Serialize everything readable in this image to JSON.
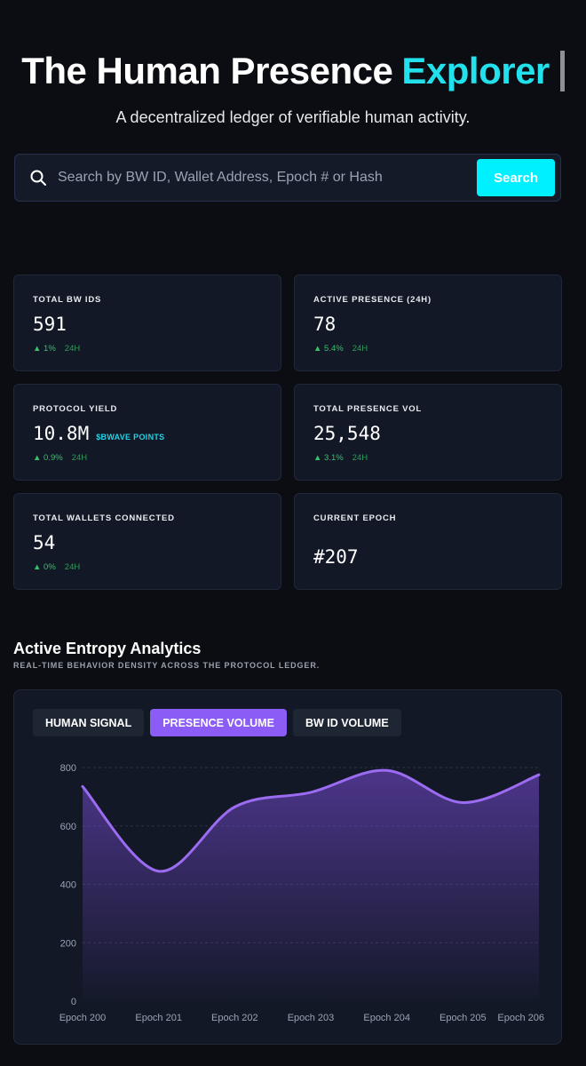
{
  "header": {
    "title_main": "The Human Presence",
    "title_accent": "Explorer",
    "subtitle": "A decentralized ledger of verifiable human activity."
  },
  "search": {
    "placeholder": "Search by BW ID, Wallet Address, Epoch # or Hash",
    "button_label": "Search"
  },
  "stats": [
    {
      "label": "TOTAL BW IDS",
      "value": "591",
      "unit": "",
      "delta": "▲ 1%",
      "period": "24H"
    },
    {
      "label": "ACTIVE PRESENCE (24H)",
      "value": "78",
      "unit": "",
      "delta": "▲ 5.4%",
      "period": "24H"
    },
    {
      "label": "PROTOCOL YIELD",
      "value": "10.8M",
      "unit": "$BWAVE POINTS",
      "delta": "▲ 0.9%",
      "period": "24H"
    },
    {
      "label": "TOTAL PRESENCE VOL",
      "value": "25,548",
      "unit": "",
      "delta": "▲ 3.1%",
      "period": "24H"
    },
    {
      "label": "TOTAL WALLETS CONNECTED",
      "value": "54",
      "unit": "",
      "delta": "▲ 0%",
      "period": "24H"
    },
    {
      "label": "CURRENT EPOCH",
      "value": "#207",
      "unit": "",
      "delta": "",
      "period": ""
    }
  ],
  "analytics": {
    "title": "Active Entropy Analytics",
    "subtitle": "REAL-TIME BEHAVIOR DENSITY ACROSS THE PROTOCOL LEDGER.",
    "tabs": [
      "HUMAN SIGNAL",
      "PRESENCE VOLUME",
      "BW ID VOLUME"
    ],
    "active_tab": 1
  },
  "colors": {
    "accent": "#22e0ec",
    "search_button": "#00f0ff",
    "positive": "#3ac06b",
    "series": "#9b6cf2",
    "tab_active": "#8b5cf6"
  },
  "chart_data": {
    "type": "area",
    "title": "",
    "xlabel": "",
    "ylabel": "",
    "categories": [
      "Epoch 200",
      "Epoch 201",
      "Epoch 202",
      "Epoch 203",
      "Epoch 204",
      "Epoch 205",
      "Epoch 206"
    ],
    "series": [
      {
        "name": "Presence Volume",
        "values": [
          735,
          445,
          665,
          715,
          790,
          680,
          775
        ]
      }
    ],
    "yticks": [
      0,
      200,
      400,
      600,
      800
    ],
    "ylim": [
      0,
      800
    ],
    "grid": true,
    "smooth": true
  }
}
